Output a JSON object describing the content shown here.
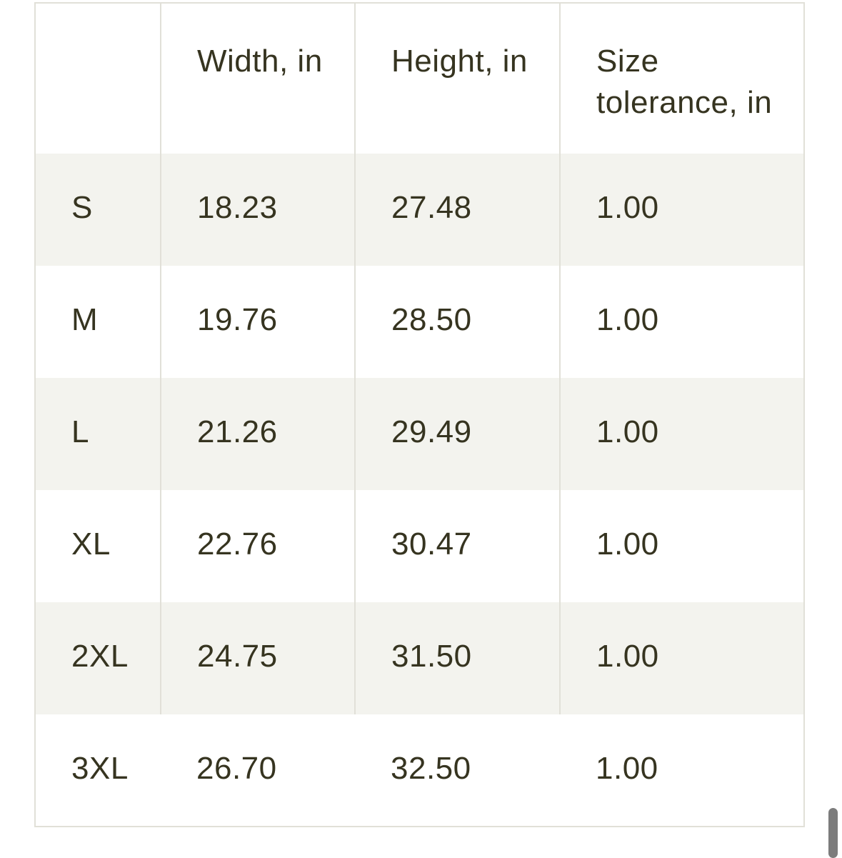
{
  "table": {
    "columns": [
      "",
      "Width, in",
      "Height, in",
      "Size tolerance, in"
    ],
    "rows": [
      {
        "size": "S",
        "width_in": "18.23",
        "height_in": "27.48",
        "tolerance_in": "1.00"
      },
      {
        "size": "M",
        "width_in": "19.76",
        "height_in": "28.50",
        "tolerance_in": "1.00"
      },
      {
        "size": "L",
        "width_in": "21.26",
        "height_in": "29.49",
        "tolerance_in": "1.00"
      },
      {
        "size": "XL",
        "width_in": "22.76",
        "height_in": "30.47",
        "tolerance_in": "1.00"
      },
      {
        "size": "2XL",
        "width_in": "24.75",
        "height_in": "31.50",
        "tolerance_in": "1.00"
      },
      {
        "size": "3XL",
        "width_in": "26.70",
        "height_in": "32.50",
        "tolerance_in": "1.00"
      }
    ]
  },
  "colors": {
    "text": "#363420",
    "border": "#e1e0d8",
    "row_shade": "#f3f3ee",
    "background": "#ffffff",
    "scrollbar": "#7c7c7c"
  }
}
